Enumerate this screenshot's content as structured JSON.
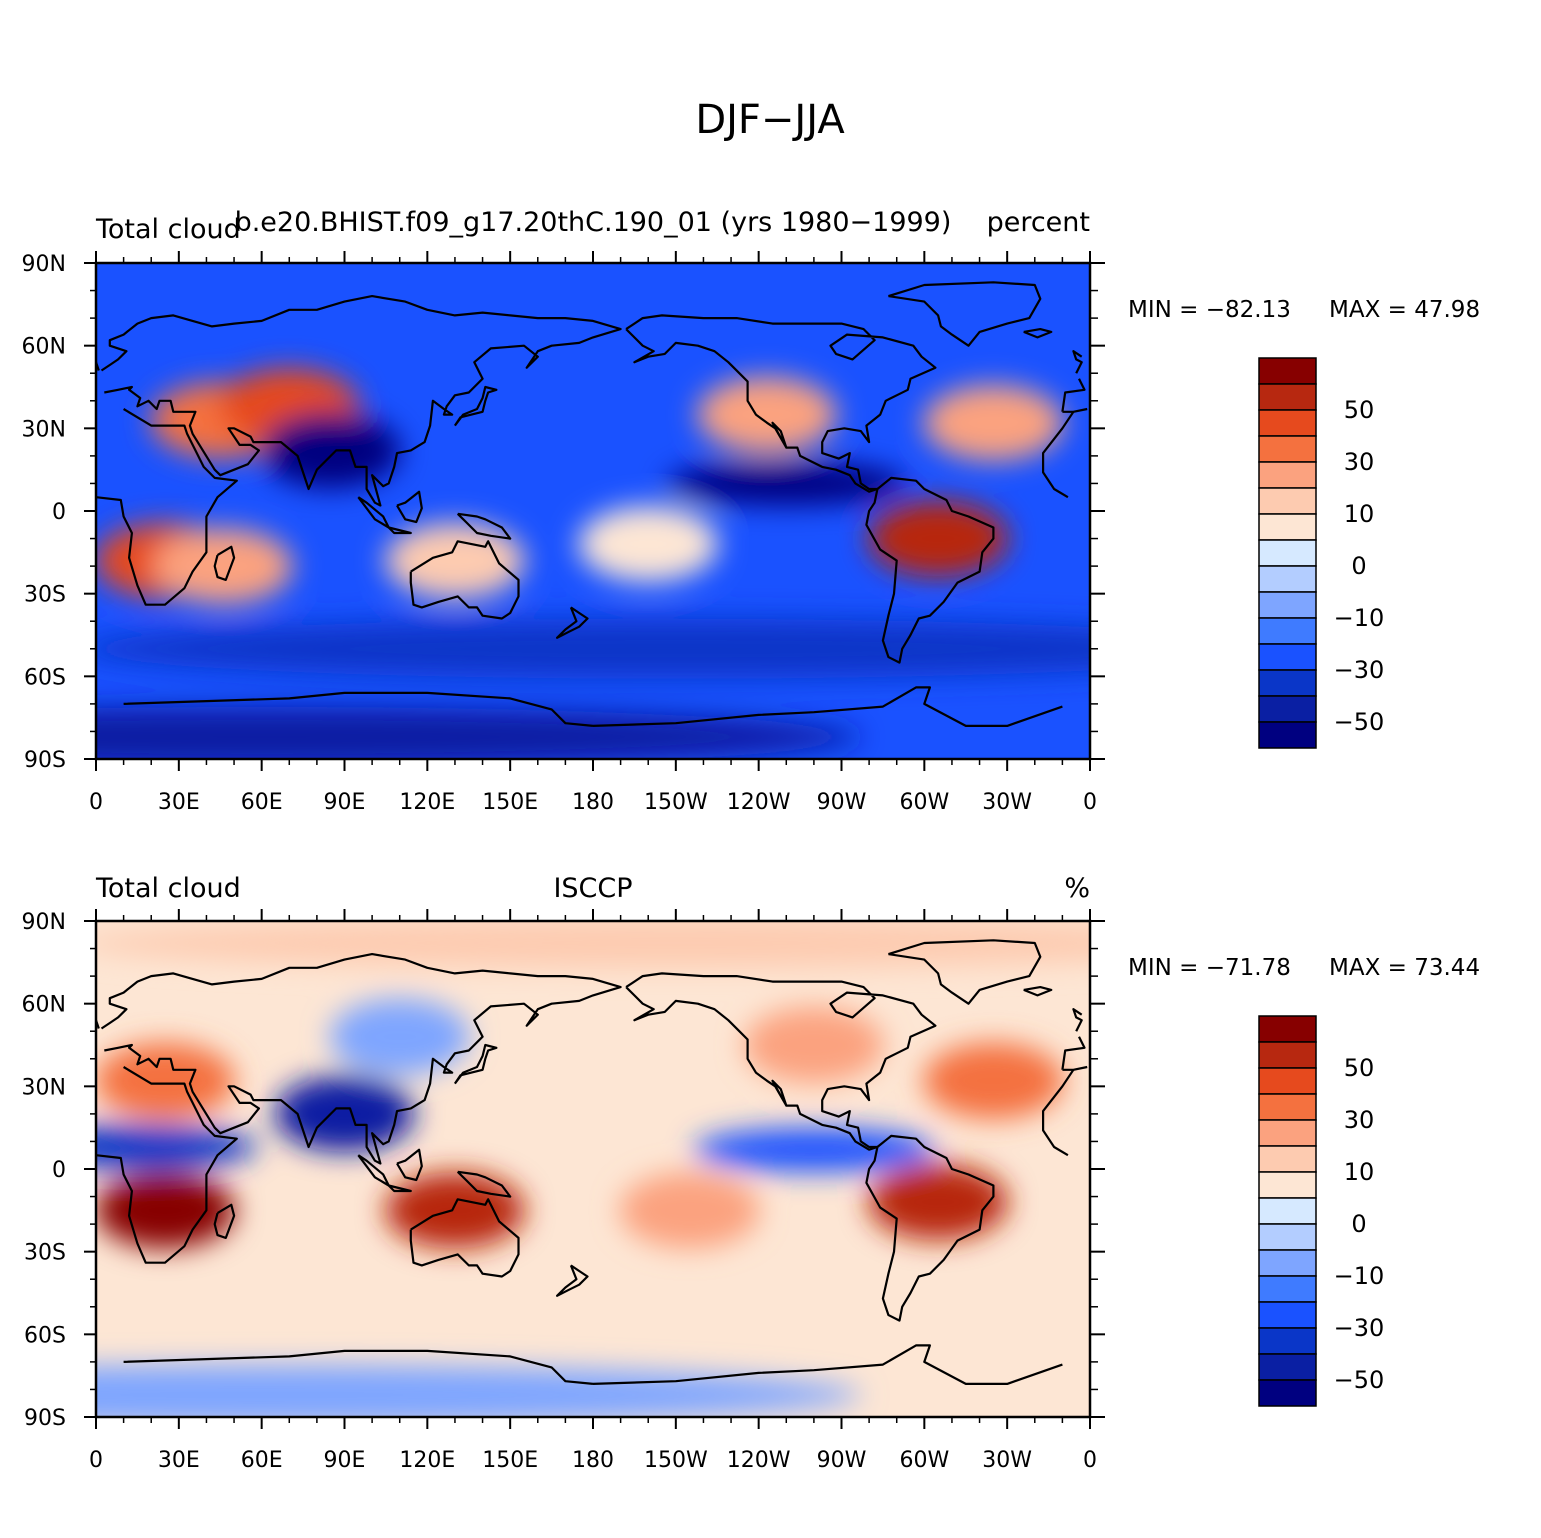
{
  "title": "DJF−JJA",
  "colors": {
    "levels": [
      "#000080",
      "#0a1fa3",
      "#0a36c8",
      "#1a52ff",
      "#3f7bff",
      "#7ea5ff",
      "#b3cdff",
      "#d6e9ff",
      "#fde6d4",
      "#fdcbb0",
      "#fba27f",
      "#f4713f",
      "#e64a1e",
      "#b72810",
      "#870000"
    ],
    "coast": "#000000",
    "frame": "#000000"
  },
  "lon_ticks": [
    "0",
    "30E",
    "60E",
    "90E",
    "120E",
    "150E",
    "180",
    "150W",
    "120W",
    "90W",
    "60W",
    "30W",
    "0"
  ],
  "lat_ticks": [
    "90N",
    "60N",
    "30N",
    "0",
    "30S",
    "60S",
    "90S"
  ],
  "panels": [
    {
      "left_title": "Total cloud",
      "center_title": "b.e20.BHIST.f09_g17.20thC.190_01 (yrs 1980−1999)",
      "right_title": "percent",
      "min_label": "MIN = −82.13",
      "max_label": "MAX =   47.98",
      "colorbar_labels": [
        "50",
        "30",
        "10",
        "0",
        "−10",
        "−30",
        "−50"
      ],
      "field_regions": [
        {
          "name": "background",
          "lon": 0,
          "lat": 0,
          "level": 3
        },
        {
          "name": "sahara-arabia",
          "lon": 45,
          "lat": 33,
          "level": 11
        },
        {
          "name": "central-asia",
          "lon": 70,
          "lat": 38,
          "level": 12
        },
        {
          "name": "southern-africa",
          "lon": 25,
          "lat": -18,
          "level": 12
        },
        {
          "name": "madagascar",
          "lon": 46,
          "lat": -20,
          "level": 10
        },
        {
          "name": "north-australia",
          "lon": 130,
          "lat": -18,
          "level": 9
        },
        {
          "name": "south-america",
          "lon": -55,
          "lat": -10,
          "level": 13
        },
        {
          "name": "western-us",
          "lon": -117,
          "lat": 35,
          "level": 10
        },
        {
          "name": "north-atlantic",
          "lon": -35,
          "lat": 32,
          "level": 10
        },
        {
          "name": "central-pacific",
          "lon": -160,
          "lat": -12,
          "level": 8
        },
        {
          "name": "south-asia",
          "lon": 85,
          "lat": 22,
          "level": 0
        },
        {
          "name": "east-pacific-itcz",
          "lon": -110,
          "lat": 10,
          "level": 0
        },
        {
          "name": "southern-ocean",
          "lon": -150,
          "lat": -50,
          "level": 2
        },
        {
          "name": "antarctica",
          "lon": 60,
          "lat": -82,
          "level": 1
        }
      ]
    },
    {
      "left_title": "Total cloud",
      "center_title": "ISCCP",
      "right_title": "%",
      "min_label": "MIN = −71.78",
      "max_label": "MAX =   73.44",
      "colorbar_labels": [
        "50",
        "30",
        "10",
        "0",
        "−10",
        "−30",
        "−50"
      ],
      "field_regions": [
        {
          "name": "background",
          "lon": 0,
          "lat": 0,
          "level": 8
        },
        {
          "name": "arctic",
          "lon": -150,
          "lat": 82,
          "level": 9
        },
        {
          "name": "north-africa",
          "lon": 25,
          "lat": 32,
          "level": 11
        },
        {
          "name": "southern-africa",
          "lon": 25,
          "lat": -15,
          "level": 14
        },
        {
          "name": "north-australia",
          "lon": 130,
          "lat": -15,
          "level": 13
        },
        {
          "name": "south-america",
          "lon": -55,
          "lat": -12,
          "level": 13
        },
        {
          "name": "north-america",
          "lon": -100,
          "lat": 45,
          "level": 10
        },
        {
          "name": "north-atlantic",
          "lon": -35,
          "lat": 32,
          "level": 11
        },
        {
          "name": "south-pacific",
          "lon": -145,
          "lat": -15,
          "level": 10
        },
        {
          "name": "siberia",
          "lon": 110,
          "lat": 48,
          "level": 5
        },
        {
          "name": "south-asia",
          "lon": 90,
          "lat": 20,
          "level": 1
        },
        {
          "name": "africa-itcz",
          "lon": 15,
          "lat": 8,
          "level": 2
        },
        {
          "name": "east-pacific-itcz",
          "lon": -100,
          "lat": 7,
          "level": 3
        },
        {
          "name": "antarctica",
          "lon": 60,
          "lat": -82,
          "level": 5
        }
      ]
    }
  ]
}
